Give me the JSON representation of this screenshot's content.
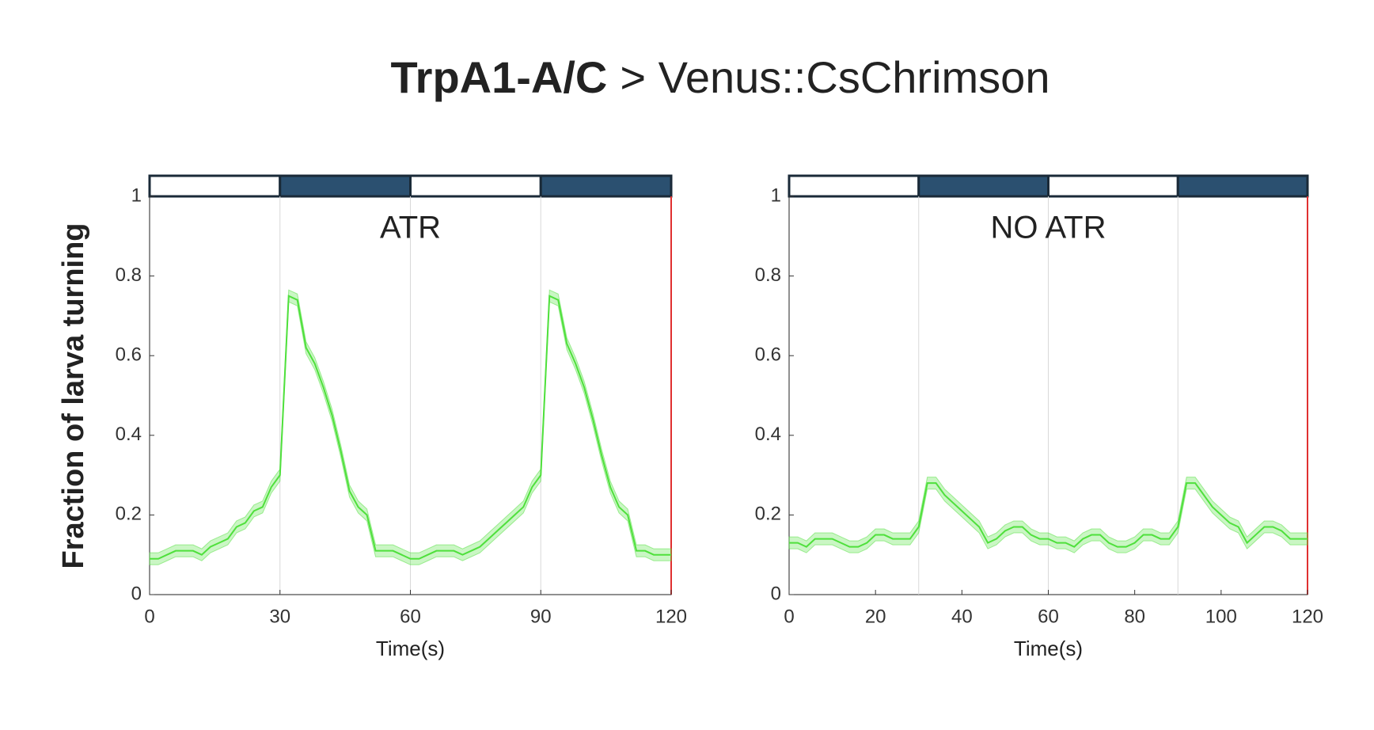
{
  "title": [
    "TrpA1-A/C",
    "> Venus::CsChrimson"
  ],
  "ylabel": "Fraction of larva turning",
  "chart_data": [
    {
      "type": "line",
      "annotation": "ATR",
      "xlabel": "Time(s)",
      "xlim": [
        0,
        120
      ],
      "xticks": [
        0,
        30,
        60,
        90,
        120
      ],
      "ylim": [
        0,
        1
      ],
      "yticks": [
        0,
        0.2,
        0.4,
        0.6,
        0.8,
        1
      ],
      "stimulus": {
        "edges": [
          0,
          30,
          60,
          90,
          120
        ],
        "colors": [
          "#ffffff",
          "#2b5070",
          "#ffffff",
          "#2b5070"
        ]
      },
      "x": [
        0,
        2,
        4,
        6,
        8,
        10,
        12,
        14,
        16,
        18,
        20,
        22,
        24,
        26,
        28,
        30,
        32,
        34,
        36,
        38,
        40,
        42,
        44,
        46,
        48,
        50,
        52,
        54,
        56,
        58,
        60,
        62,
        64,
        66,
        68,
        70,
        72,
        74,
        76,
        78,
        80,
        82,
        84,
        86,
        88,
        90,
        92,
        94,
        96,
        98,
        100,
        102,
        104,
        106,
        108,
        110,
        112,
        114,
        116,
        118,
        120
      ],
      "series": [
        {
          "color": "#4fe03c",
          "values": [
            0.09,
            0.09,
            0.1,
            0.11,
            0.11,
            0.11,
            0.1,
            0.12,
            0.13,
            0.14,
            0.17,
            0.18,
            0.21,
            0.22,
            0.27,
            0.3,
            0.75,
            0.74,
            0.62,
            0.58,
            0.52,
            0.45,
            0.36,
            0.26,
            0.22,
            0.2,
            0.11,
            0.11,
            0.11,
            0.1,
            0.09,
            0.09,
            0.1,
            0.11,
            0.11,
            0.11,
            0.1,
            0.11,
            0.12,
            0.14,
            0.16,
            0.18,
            0.2,
            0.22,
            0.27,
            0.3,
            0.75,
            0.74,
            0.63,
            0.58,
            0.52,
            0.44,
            0.35,
            0.27,
            0.22,
            0.2,
            0.11,
            0.11,
            0.1,
            0.1,
            0.1
          ],
          "error": [
            0.015,
            0.015,
            0.015,
            0.015,
            0.015,
            0.015,
            0.015,
            0.015,
            0.015,
            0.015,
            0.015,
            0.015,
            0.015,
            0.015,
            0.015,
            0.015,
            0.015,
            0.015,
            0.015,
            0.015,
            0.015,
            0.015,
            0.015,
            0.015,
            0.015,
            0.015,
            0.015,
            0.015,
            0.015,
            0.015,
            0.015,
            0.015,
            0.015,
            0.015,
            0.015,
            0.015,
            0.015,
            0.015,
            0.015,
            0.015,
            0.015,
            0.015,
            0.015,
            0.015,
            0.015,
            0.015,
            0.015,
            0.015,
            0.015,
            0.015,
            0.015,
            0.015,
            0.015,
            0.015,
            0.015,
            0.015,
            0.015,
            0.015,
            0.015,
            0.015,
            0.015
          ]
        }
      ]
    },
    {
      "type": "line",
      "annotation": "NO ATR",
      "xlabel": "Time(s)",
      "xlim": [
        0,
        120
      ],
      "xticks": [
        0,
        20,
        40,
        60,
        80,
        100,
        120
      ],
      "ylim": [
        0,
        1
      ],
      "yticks": [
        0,
        0.2,
        0.4,
        0.6,
        0.8,
        1
      ],
      "stimulus": {
        "edges": [
          0,
          30,
          60,
          90,
          120
        ],
        "colors": [
          "#ffffff",
          "#2b5070",
          "#ffffff",
          "#2b5070"
        ]
      },
      "x": [
        0,
        2,
        4,
        6,
        8,
        10,
        12,
        14,
        16,
        18,
        20,
        22,
        24,
        26,
        28,
        30,
        32,
        34,
        36,
        38,
        40,
        42,
        44,
        46,
        48,
        50,
        52,
        54,
        56,
        58,
        60,
        62,
        64,
        66,
        68,
        70,
        72,
        74,
        76,
        78,
        80,
        82,
        84,
        86,
        88,
        90,
        92,
        94,
        96,
        98,
        100,
        102,
        104,
        106,
        108,
        110,
        112,
        114,
        116,
        118,
        120
      ],
      "series": [
        {
          "color": "#4fe03c",
          "values": [
            0.13,
            0.13,
            0.12,
            0.14,
            0.14,
            0.14,
            0.13,
            0.12,
            0.12,
            0.13,
            0.15,
            0.15,
            0.14,
            0.14,
            0.14,
            0.17,
            0.28,
            0.28,
            0.25,
            0.23,
            0.21,
            0.19,
            0.17,
            0.13,
            0.14,
            0.16,
            0.17,
            0.17,
            0.15,
            0.14,
            0.14,
            0.13,
            0.13,
            0.12,
            0.14,
            0.15,
            0.15,
            0.13,
            0.12,
            0.12,
            0.13,
            0.15,
            0.15,
            0.14,
            0.14,
            0.17,
            0.28,
            0.28,
            0.25,
            0.22,
            0.2,
            0.18,
            0.17,
            0.13,
            0.15,
            0.17,
            0.17,
            0.16,
            0.14,
            0.14,
            0.14
          ],
          "error": [
            0.015,
            0.015,
            0.015,
            0.015,
            0.015,
            0.015,
            0.015,
            0.015,
            0.015,
            0.015,
            0.015,
            0.015,
            0.015,
            0.015,
            0.015,
            0.015,
            0.015,
            0.015,
            0.015,
            0.015,
            0.015,
            0.015,
            0.015,
            0.015,
            0.015,
            0.015,
            0.015,
            0.015,
            0.015,
            0.015,
            0.015,
            0.015,
            0.015,
            0.015,
            0.015,
            0.015,
            0.015,
            0.015,
            0.015,
            0.015,
            0.015,
            0.015,
            0.015,
            0.015,
            0.015,
            0.015,
            0.015,
            0.015,
            0.015,
            0.015,
            0.015,
            0.015,
            0.015,
            0.015,
            0.015,
            0.015,
            0.015,
            0.015,
            0.015,
            0.015,
            0.015
          ]
        }
      ]
    }
  ]
}
